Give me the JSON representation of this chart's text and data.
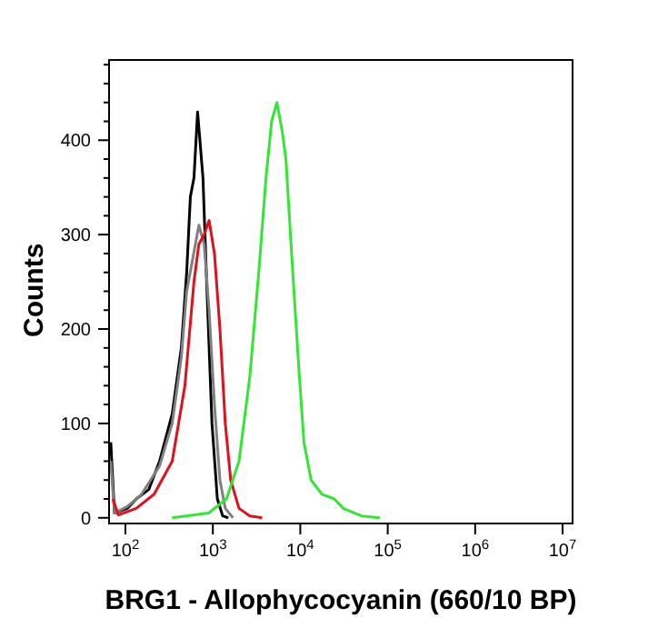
{
  "chart_data": {
    "type": "line",
    "xlabel": "BRG1 - Allophycocyanin  (660/10 BP)",
    "ylabel": "Counts",
    "log": "x",
    "xlim": [
      65,
      13000000
    ],
    "ylim": [
      -6,
      485
    ],
    "xticks": [
      {
        "value": 100,
        "label": "10$^{2}$"
      },
      {
        "value": 1000,
        "label": "10$^{3}$"
      },
      {
        "value": 10000,
        "label": "10$^{4}$"
      },
      {
        "value": 100000,
        "label": "10$^{5}$"
      },
      {
        "value": 1000000,
        "label": "10$^{6}$"
      },
      {
        "value": 10000000,
        "label": "10$^{7}$"
      }
    ],
    "yticks": [
      0,
      {
        "value": 20,
        "label": null
      },
      {
        "value": 40,
        "label": null
      },
      {
        "value": 60,
        "label": null
      },
      {
        "value": 80,
        "label": null
      },
      100,
      {
        "value": 120,
        "label": null
      },
      {
        "value": 140,
        "label": null
      },
      {
        "value": 160,
        "label": null
      },
      {
        "value": 180,
        "label": null
      },
      200,
      {
        "value": 220,
        "label": null
      },
      {
        "value": 240,
        "label": null
      },
      {
        "value": 260,
        "label": null
      },
      {
        "value": 280,
        "label": null
      },
      300,
      {
        "value": 320,
        "label": null
      },
      {
        "value": 340,
        "label": null
      },
      {
        "value": 360,
        "label": null
      },
      {
        "value": 380,
        "label": null
      },
      400,
      {
        "value": 420,
        "label": null
      },
      {
        "value": 440,
        "label": null
      },
      {
        "value": 460,
        "label": null
      },
      {
        "value": 480,
        "label": null
      }
    ],
    "grid": false,
    "legend": false,
    "marker": "none",
    "line_style": "solid",
    "series": [
      {
        "color": "#000000",
        "x": [
          68,
          75,
          105,
          133,
          185,
          246,
          343,
          436,
          502,
          553,
          608,
          669,
          771,
          849,
          977,
          1126,
          1295,
          1500
        ],
        "values": [
          80,
          5,
          10,
          20,
          30,
          60,
          110,
          180,
          260,
          340,
          360,
          430,
          360,
          250,
          100,
          20,
          2,
          0
        ]
      },
      {
        "color": "#808080",
        "x": [
          68,
          75,
          105,
          153,
          246,
          343,
          436,
          502,
          577,
          692,
          795,
          906,
          1043,
          1205,
          1387,
          1700
        ],
        "values": [
          60,
          5,
          12,
          25,
          55,
          100,
          170,
          240,
          270,
          310,
          290,
          220,
          120,
          40,
          10,
          0
        ]
      },
      {
        "color": "#e0101c",
        "x": [
          72,
          83,
          133,
          213,
          343,
          479,
          608,
          692,
          795,
          906,
          1043,
          1205,
          1387,
          1600,
          1990,
          2650,
          3670
        ],
        "values": [
          20,
          3,
          10,
          25,
          60,
          140,
          250,
          290,
          300,
          315,
          280,
          200,
          100,
          40,
          10,
          2,
          0
        ]
      },
      {
        "color": "#33e633",
        "x": [
          343,
          890,
          1430,
          1990,
          2650,
          3350,
          4050,
          4700,
          5400,
          6200,
          6850,
          7950,
          9600,
          11000,
          13300,
          17700,
          24500,
          31000,
          50000,
          81000
        ],
        "values": [
          0,
          5,
          20,
          60,
          150,
          260,
          360,
          420,
          440,
          410,
          380,
          280,
          160,
          80,
          40,
          25,
          20,
          10,
          2,
          0
        ]
      }
    ]
  }
}
